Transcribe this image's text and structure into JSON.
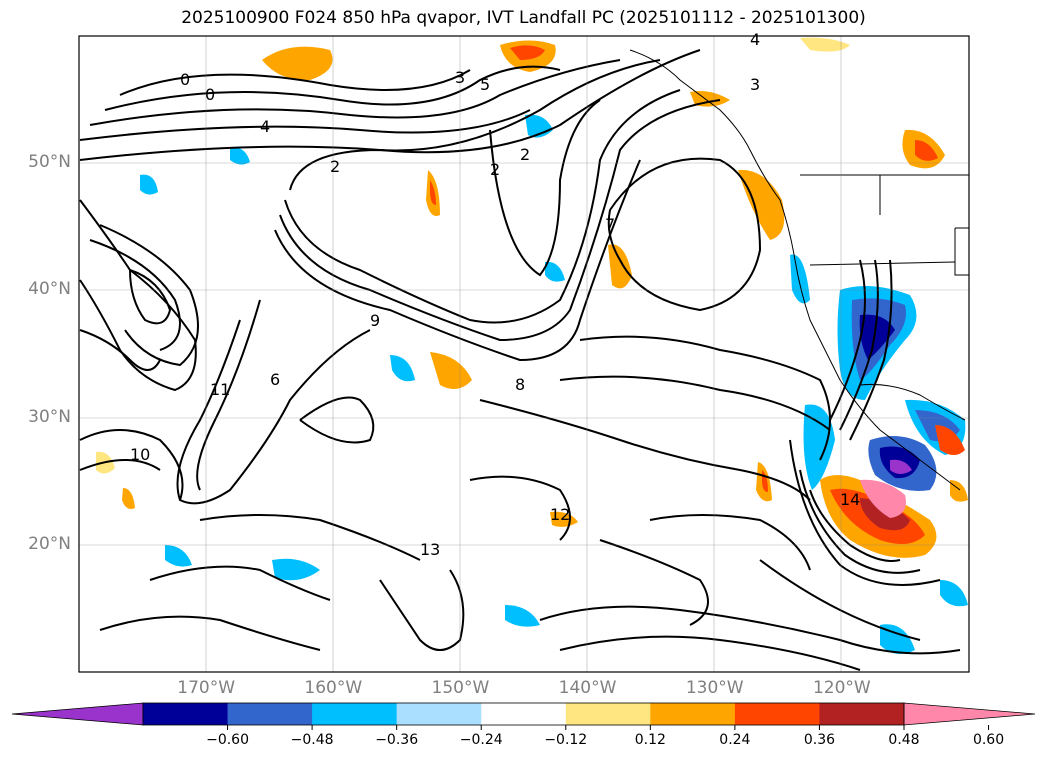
{
  "title": "2025100900 F024 850 hPa qvapor, IVT Landfall PC (2025101112 - 2025101300)",
  "map": {
    "lat_labels": [
      {
        "lat": 50,
        "label": "50°N"
      },
      {
        "lat": 40,
        "label": "40°N"
      },
      {
        "lat": 30,
        "label": "30°N"
      },
      {
        "lat": 20,
        "label": "20°N"
      }
    ],
    "lon_labels": [
      {
        "lon": -170,
        "label": "170°W"
      },
      {
        "lon": -160,
        "label": "160°W"
      },
      {
        "lon": -150,
        "label": "150°W"
      },
      {
        "lon": -140,
        "label": "140°W"
      },
      {
        "lon": -130,
        "label": "130°W"
      },
      {
        "lon": -120,
        "label": "120°W"
      }
    ],
    "extent": {
      "lon_min": -180,
      "lon_max": -110,
      "lat_min": 10,
      "lat_max": 60
    },
    "contour_labels": [
      "0",
      "0",
      "2",
      "2",
      "2",
      "3",
      "3",
      "4",
      "4",
      "5",
      "6",
      "7",
      "8",
      "9",
      "10",
      "11",
      "12",
      "13",
      "14"
    ]
  },
  "colorbar": {
    "ticks": [
      "−0.60",
      "−0.48",
      "−0.36",
      "−0.24",
      "−0.12",
      "0.12",
      "0.24",
      "0.36",
      "0.48",
      "0.60"
    ],
    "colors": [
      "#9933cc",
      "#000099",
      "#3366cc",
      "#00bfff",
      "#aadfff",
      "#ffffff",
      "#ffe680",
      "#ffa500",
      "#ff4500",
      "#b22222",
      "#ff88aa"
    ]
  }
}
